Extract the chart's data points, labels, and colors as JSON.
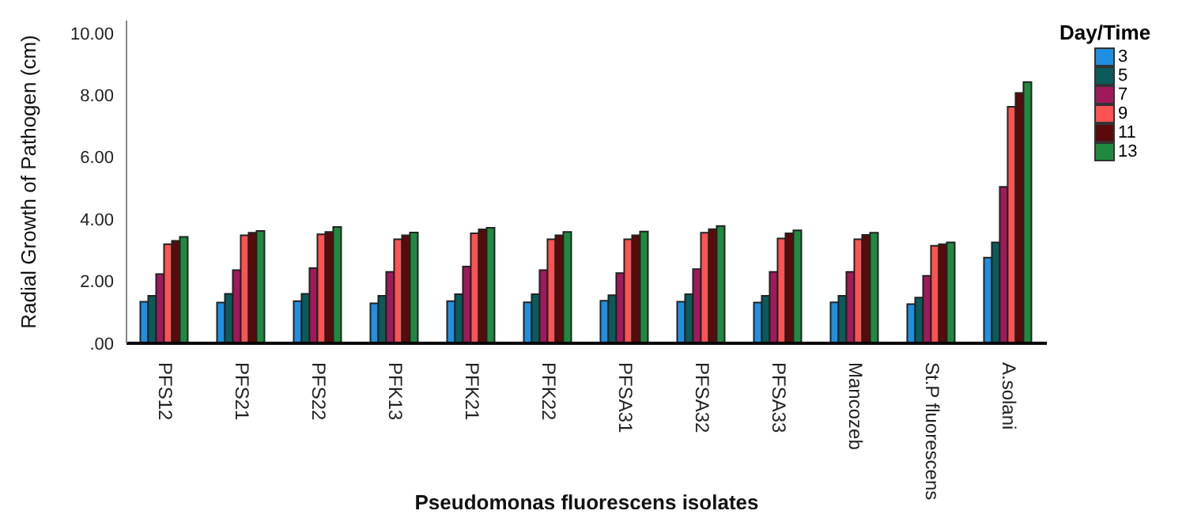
{
  "chart_data": {
    "type": "bar",
    "xlabel": "Pseudomonas fluorescens isolates",
    "ylabel": "Radial Growth of Pathogen (cm)",
    "legend_title": "Day/Time",
    "legend": "top right",
    "categories": [
      "PFS12",
      "PFS21",
      "PFS22",
      "PFK13",
      "PFK21",
      "PFK22",
      "PFSA31",
      "PFSA32",
      "PFSA33",
      "Mancozeb",
      "St.P fluorescens",
      "A.solani"
    ],
    "ylim": [
      0,
      10.4
    ],
    "yticks": [
      {
        "value": 0,
        "label": ".00"
      },
      {
        "value": 2,
        "label": "2.00"
      },
      {
        "value": 4,
        "label": "4.00"
      },
      {
        "value": 6,
        "label": "6.00"
      },
      {
        "value": 8,
        "label": "8.00"
      },
      {
        "value": 10,
        "label": "10.00"
      }
    ],
    "series": [
      {
        "name": "3",
        "color": "#1f8fe0",
        "values": [
          1.34,
          1.31,
          1.36,
          1.29,
          1.36,
          1.32,
          1.37,
          1.34,
          1.31,
          1.32,
          1.26,
          2.76
        ]
      },
      {
        "name": "5",
        "color": "#0b5b5b",
        "values": [
          1.53,
          1.59,
          1.59,
          1.53,
          1.58,
          1.58,
          1.55,
          1.58,
          1.53,
          1.53,
          1.47,
          3.25
        ]
      },
      {
        "name": "7",
        "color": "#a0195a",
        "values": [
          2.23,
          2.36,
          2.42,
          2.3,
          2.47,
          2.36,
          2.26,
          2.39,
          2.3,
          2.3,
          2.17,
          5.04
        ]
      },
      {
        "name": "9",
        "color": "#ff5252",
        "values": [
          3.19,
          3.48,
          3.51,
          3.35,
          3.54,
          3.35,
          3.35,
          3.56,
          3.38,
          3.35,
          3.14,
          7.62
        ]
      },
      {
        "name": "11",
        "color": "#5a0a0a",
        "values": [
          3.3,
          3.56,
          3.59,
          3.48,
          3.67,
          3.48,
          3.48,
          3.68,
          3.54,
          3.49,
          3.19,
          8.07
        ]
      },
      {
        "name": "13",
        "color": "#1f8a3f",
        "values": [
          3.43,
          3.62,
          3.75,
          3.57,
          3.72,
          3.59,
          3.6,
          3.78,
          3.64,
          3.56,
          3.25,
          8.42
        ]
      }
    ]
  }
}
